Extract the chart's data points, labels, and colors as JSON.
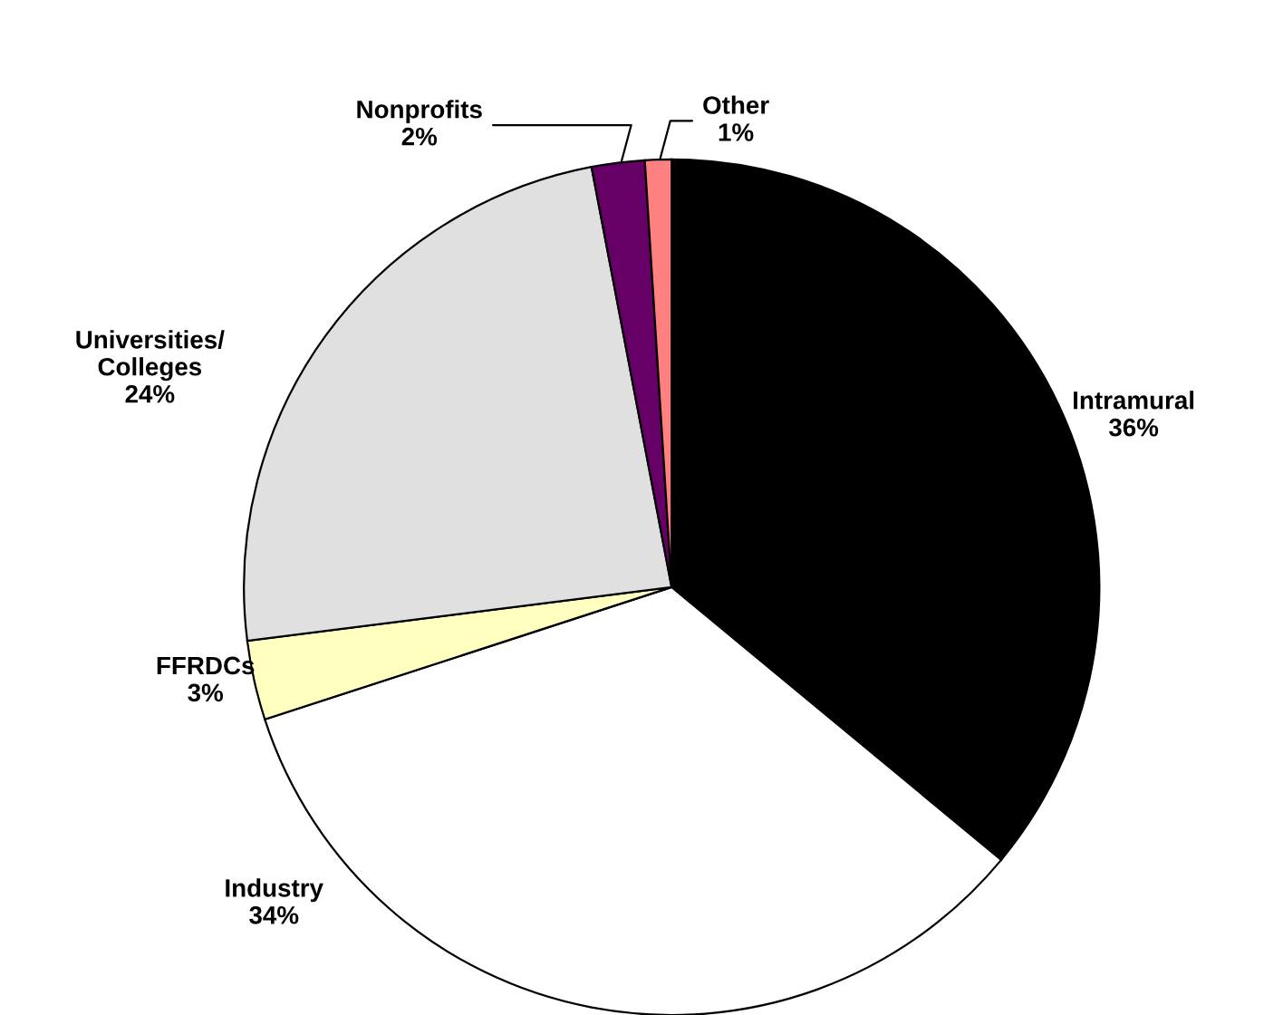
{
  "chart_data": {
    "type": "pie",
    "categories": [
      "Intramural",
      "Industry",
      "FFRDCs",
      "Universities/\nColleges",
      "Nonprofits",
      "Other"
    ],
    "values": [
      36,
      34,
      3,
      24,
      2,
      1
    ],
    "value_labels": [
      "36%",
      "34%",
      "3%",
      "24%",
      "2%",
      "1%"
    ],
    "colors": [
      "#000000",
      "#ffffff",
      "#ffffc0",
      "#e0e0e0",
      "#660066",
      "#ff8080"
    ]
  }
}
